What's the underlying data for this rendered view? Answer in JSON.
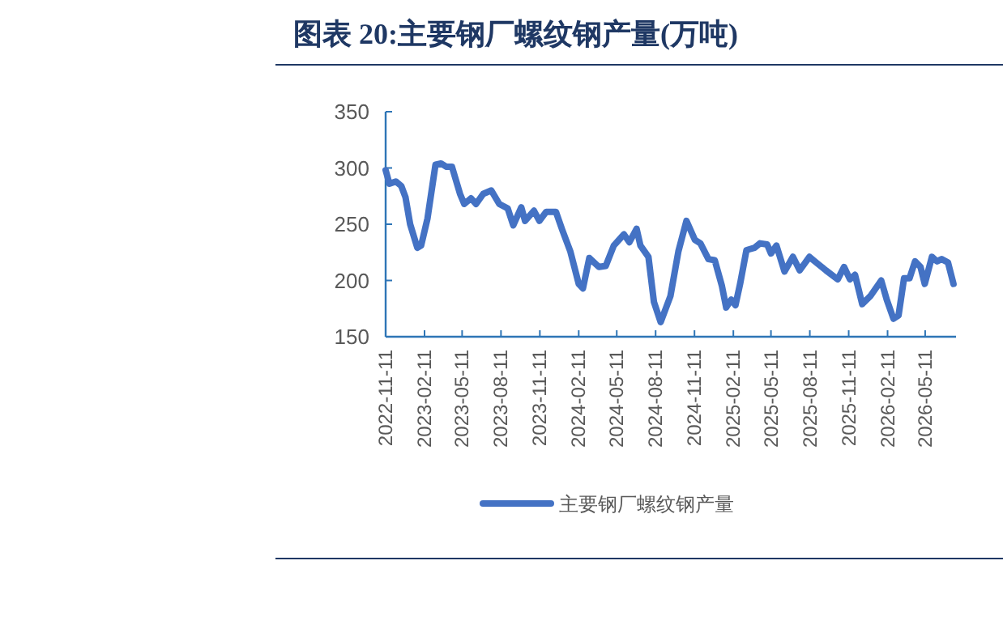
{
  "chart_data": {
    "type": "line",
    "title": "图表 20:主要钢厂螺纹钢产量(万吨)",
    "x": [
      "2022-11-11",
      "2022-11-20",
      "2022-12-05",
      "2022-12-18",
      "2022-12-28",
      "2023-01-08",
      "2023-01-25",
      "2023-02-03",
      "2023-02-18",
      "2023-03-09",
      "2023-03-22",
      "2023-04-04",
      "2023-04-17",
      "2023-05-06",
      "2023-05-16",
      "2023-06-01",
      "2023-06-13",
      "2023-06-30",
      "2023-07-19",
      "2023-08-07",
      "2023-08-27",
      "2023-09-09",
      "2023-09-28",
      "2023-10-07",
      "2023-10-28",
      "2023-11-10",
      "2023-11-26",
      "2023-12-19",
      "2024-01-03",
      "2024-01-22",
      "2024-02-11",
      "2024-02-21",
      "2024-03-07",
      "2024-03-30",
      "2024-04-15",
      "2024-05-04",
      "2024-05-28",
      "2024-06-10",
      "2024-06-27",
      "2024-07-06",
      "2024-07-25",
      "2024-08-07",
      "2024-08-23",
      "2024-09-15",
      "2024-10-04",
      "2024-10-23",
      "2024-11-12",
      "2024-11-25",
      "2024-12-14",
      "2024-12-29",
      "2025-01-15",
      "2025-01-25",
      "2025-02-06",
      "2025-02-16",
      "2025-02-27",
      "2025-03-14",
      "2025-04-02",
      "2025-04-15",
      "2025-05-02",
      "2025-05-11",
      "2025-05-24",
      "2025-06-12",
      "2025-07-02",
      "2025-07-18",
      "2025-08-10",
      "2025-08-26",
      "2025-09-18",
      "2025-10-16",
      "2025-10-31",
      "2025-11-14",
      "2025-11-26",
      "2025-12-13",
      "2026-01-01",
      "2026-01-27",
      "2026-02-09",
      "2026-02-25",
      "2026-03-09",
      "2026-03-22",
      "2026-04-04",
      "2026-04-17",
      "2026-04-30",
      "2026-05-10",
      "2026-05-27",
      "2026-06-08",
      "2026-06-19",
      "2026-07-04",
      "2026-07-17"
    ],
    "series": [
      {
        "name": "主要钢厂螺纹钢产量",
        "color": "#4472c4",
        "values": [
          298,
          286,
          288,
          284,
          274,
          250,
          229,
          231,
          255,
          303,
          304,
          301,
          301,
          277,
          268,
          273,
          268,
          277,
          280,
          268,
          264,
          249,
          265,
          253,
          262,
          253,
          261,
          261,
          245,
          226,
          197,
          193,
          220,
          212,
          213,
          231,
          241,
          234,
          246,
          231,
          221,
          181,
          163,
          186,
          226,
          253,
          236,
          233,
          219,
          218,
          195,
          176,
          183,
          178,
          197,
          227,
          229,
          233,
          232,
          224,
          231,
          208,
          221,
          209,
          221,
          216,
          209,
          201,
          212,
          201,
          205,
          179,
          186,
          200,
          183,
          166,
          169,
          202,
          202,
          217,
          212,
          197,
          221,
          217,
          219,
          216,
          197
        ]
      }
    ],
    "xlim": [
      "2022-11-11",
      "2026-07-23"
    ],
    "xticks": [
      "2022-11-11",
      "2023-02-11",
      "2023-05-11",
      "2023-08-11",
      "2023-11-11",
      "2024-02-11",
      "2024-05-11",
      "2024-08-11",
      "2024-11-11",
      "2025-02-11",
      "2025-05-11",
      "2025-08-11",
      "2025-11-11",
      "2026-02-11",
      "2026-05-11"
    ],
    "ylim": [
      150,
      350
    ],
    "yticks": [
      150,
      200,
      250,
      300,
      350
    ],
    "legend": "bottom"
  }
}
